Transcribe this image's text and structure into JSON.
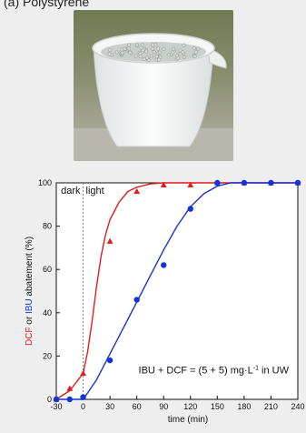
{
  "panel_label": "(a) Polystyrene",
  "photo": {
    "bowl_color": "#f2f4f4",
    "water_color": "#c9cfcc",
    "bead_color": "#d9dcd6"
  },
  "colors": {
    "dcf": "#e01c1c",
    "ibu": "#1633d6"
  },
  "chart_data": {
    "type": "line",
    "xlabel": "time (min)",
    "ylabel_parts": [
      {
        "text": "DCF",
        "color": "#e01c1c"
      },
      {
        "text": " or ",
        "color": "#111111"
      },
      {
        "text": "IBU",
        "color": "#1633d6"
      },
      {
        "text": " abatement (%)",
        "color": "#111111"
      }
    ],
    "xlim": [
      -30,
      240
    ],
    "ylim": [
      0,
      100
    ],
    "xticks": [
      -30,
      0,
      30,
      60,
      90,
      120,
      150,
      180,
      210,
      240
    ],
    "yticks": [
      0,
      20,
      40,
      60,
      80,
      100
    ],
    "dark_label": "dark",
    "light_label": "light",
    "light_start": 0,
    "annotation": "IBU + DCF = (5 + 5) mg·L",
    "annotation_sup": "-1",
    "annotation_tail": " in UW",
    "series": [
      {
        "name": "DCF",
        "color": "#e01c1c",
        "marker": "triangle",
        "x": [
          -30,
          -15,
          0,
          30,
          60,
          90,
          120,
          150,
          180,
          210,
          240
        ],
        "y": [
          0,
          5,
          12,
          73,
          96,
          99,
          99,
          100,
          100,
          100,
          100
        ],
        "fit_x": [
          -30,
          -15,
          0,
          5,
          10,
          15,
          20,
          25,
          30,
          40,
          50,
          60,
          75,
          90,
          120,
          150,
          180,
          210,
          240
        ],
        "fit_y": [
          0,
          4,
          12,
          22,
          36,
          52,
          66,
          76,
          83,
          91,
          96,
          98,
          99.5,
          100,
          100,
          100,
          100,
          100,
          100
        ]
      },
      {
        "name": "IBU",
        "color": "#1633d6",
        "marker": "circle",
        "x": [
          -30,
          -15,
          0,
          30,
          60,
          90,
          120,
          150,
          180,
          210,
          240
        ],
        "y": [
          0,
          0,
          1,
          18,
          46,
          62,
          88,
          100,
          100,
          100,
          100
        ],
        "fit_x": [
          -30,
          0,
          15,
          30,
          45,
          60,
          75,
          90,
          105,
          120,
          135,
          150,
          165,
          180,
          210,
          240
        ],
        "fit_y": [
          0,
          0,
          9,
          21,
          33,
          45,
          57,
          69,
          80,
          89,
          95,
          98.5,
          100,
          100,
          100,
          100
        ]
      }
    ]
  }
}
